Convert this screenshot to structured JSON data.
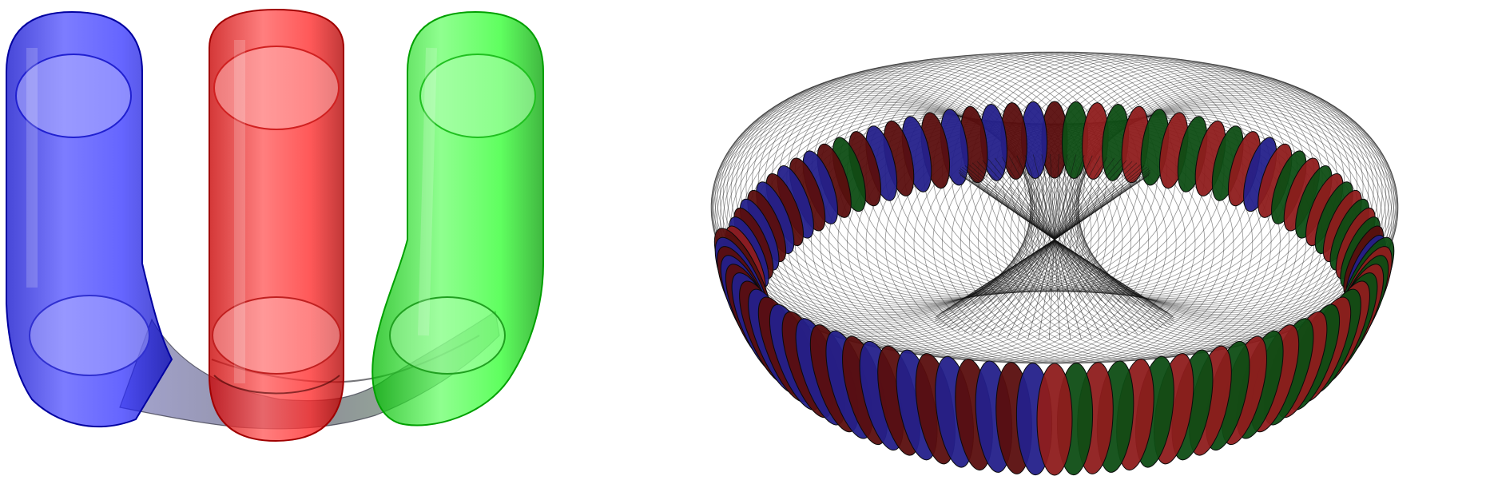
{
  "figure": {
    "panels": [
      {
        "id": "left",
        "subject": "three-translucent-tubes",
        "tube_colors": [
          "#1010ff",
          "#ff1010",
          "#10ff10"
        ],
        "connector_color": "#7a7a90"
      },
      {
        "id": "right",
        "subject": "torus-with-wire-lattice",
        "ring_colors": [
          "#5a0e0e",
          "#0e4d14",
          "#24208a",
          "#8e1c1c"
        ],
        "wire_color": "#111111",
        "segment_count": 96
      }
    ]
  }
}
